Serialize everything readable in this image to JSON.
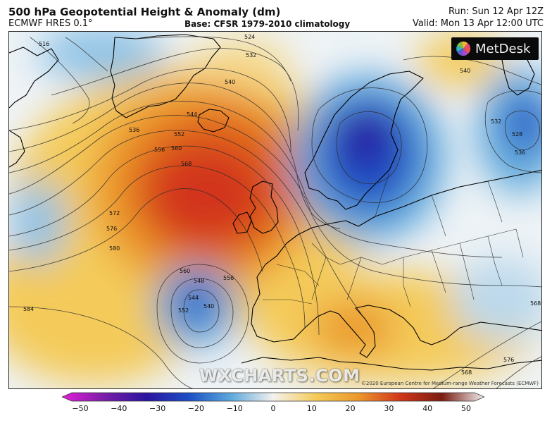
{
  "header": {
    "title": "500 hPa Geopotential Height & Anomaly (dm)",
    "model": "ECMWF HRES 0.1°",
    "base": "Base: CFSR 1979-2010 climatology",
    "run": "Run: Sun 12 Apr 12Z",
    "valid": "Valid: Mon 13 Apr 12:00 UTC"
  },
  "branding": {
    "logo_text": "MetDesk",
    "watermark": "WXCHARTS.COM",
    "copyright": "©2020 European Centre for Medium-range Weather Forecasts (ECMWF)"
  },
  "map": {
    "contour_labels": [
      "516",
      "524",
      "532",
      "536",
      "540",
      "544",
      "552",
      "556",
      "560",
      "568",
      "572",
      "576",
      "580",
      "584",
      "548",
      "552",
      "544",
      "540",
      "556",
      "560",
      "540",
      "532",
      "528",
      "536",
      "568",
      "568",
      "576"
    ],
    "anomaly_centers": [
      {
        "name": "Ridge west of British Isles",
        "anomaly_dm": 30
      },
      {
        "name": "Trough over Scandinavia",
        "anomaly_dm": -30
      },
      {
        "name": "Cut-off low west of Iberia",
        "anomaly_dm": -20
      },
      {
        "name": "Trough over western Russia",
        "anomaly_dm": -20
      }
    ]
  },
  "colorbar": {
    "ticks": [
      "−50",
      "−40",
      "−30",
      "−20",
      "−10",
      "0",
      "10",
      "20",
      "30",
      "40",
      "50"
    ],
    "range": [
      -50,
      50
    ],
    "colors": {
      "m50": "#e21fd6",
      "m40": "#7a1ea8",
      "m30": "#2a14a0",
      "m20": "#1b4fc4",
      "m10": "#5ea9dc",
      "zero": "#f4f2ee",
      "p10": "#f4cb5a",
      "p20": "#eb9a2c",
      "p30": "#d2361b",
      "p40": "#7a1d12",
      "p50": "#f0f0f0"
    }
  }
}
